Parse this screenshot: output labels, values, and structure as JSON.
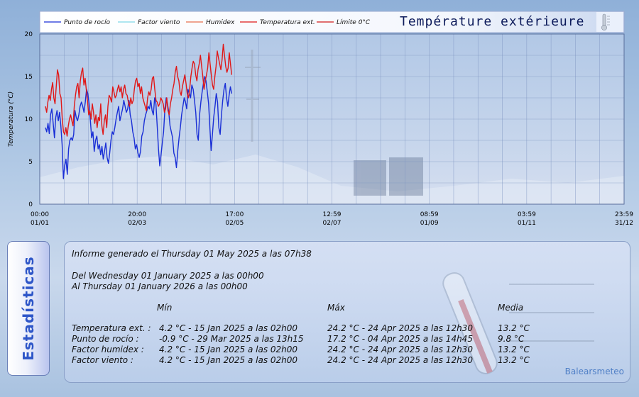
{
  "chart_data": {
    "type": "line",
    "title": "Température extérieure",
    "ylabel": "Temperatura (°C)",
    "xlabel": "",
    "ylim": [
      0,
      20
    ],
    "yticks": [
      "0",
      "5",
      "10",
      "15",
      "20"
    ],
    "xticks": [
      {
        "time": "00:00",
        "date": "01/01"
      },
      {
        "time": "20:00",
        "date": "02/03"
      },
      {
        "time": "17:00",
        "date": "02/05"
      },
      {
        "time": "12:59",
        "date": "02/07"
      },
      {
        "time": "08:59",
        "date": "01/09"
      },
      {
        "time": "03:59",
        "date": "01/11"
      },
      {
        "time": "23:59",
        "date": "31/12"
      }
    ],
    "grid": true,
    "legend_position": "top",
    "series": [
      {
        "name": "Punto de rocío",
        "color": "#1a2fd6",
        "values": [
          9.0,
          8.5,
          9.5,
          8.3,
          10.5,
          11.2,
          9.5,
          7.8,
          10.2,
          11.0,
          9.8,
          10.8,
          9.2,
          7.0,
          3.0,
          4.5,
          5.3,
          3.5,
          6.5,
          7.5,
          7.8,
          7.5,
          8.2,
          11.0,
          10.2,
          9.8,
          10.5,
          11.5,
          12.0,
          11.5,
          10.8,
          12.0,
          13.5,
          13.0,
          11.8,
          9.8,
          7.8,
          8.5,
          6.2,
          7.5,
          8.0,
          6.5,
          7.0,
          5.8,
          6.8,
          5.3,
          6.2,
          7.2,
          5.5,
          4.8,
          6.0,
          7.5,
          8.5,
          8.2,
          9.0,
          10.0,
          10.8,
          11.5,
          9.8,
          10.5,
          11.2,
          12.2,
          11.5,
          10.8,
          11.2,
          12.2,
          10.5,
          9.8,
          8.5,
          7.8,
          6.5,
          7.0,
          6.0,
          5.5,
          6.2,
          8.0,
          8.5,
          9.8,
          10.5,
          11.0,
          11.5,
          11.2,
          12.2,
          11.0,
          10.5,
          12.5,
          11.8,
          9.2,
          6.5,
          4.5,
          5.8,
          7.2,
          8.5,
          11.2,
          12.5,
          11.8,
          10.8,
          9.2,
          8.5,
          7.8,
          6.0,
          5.5,
          4.3,
          6.2,
          7.8,
          9.0,
          10.5,
          11.5,
          12.5,
          12.0,
          11.2,
          13.5,
          13.0,
          12.5,
          14.0,
          13.5,
          12.2,
          10.8,
          8.2,
          7.5,
          10.5,
          12.0,
          13.2,
          14.2,
          15.0,
          14.5,
          13.2,
          11.8,
          9.0,
          6.3,
          8.2,
          10.2,
          11.5,
          13.0,
          12.0,
          9.0,
          8.2,
          10.5,
          12.2,
          13.5,
          14.2,
          12.5,
          11.5,
          12.8,
          13.8,
          13.0
        ]
      },
      {
        "name": "Factor viento",
        "color": "#7fd8e8",
        "values": []
      },
      {
        "name": "Humidex",
        "color": "#e8704e",
        "values": []
      },
      {
        "name": "Temperatura ext.",
        "color": "#e01818",
        "values": [
          11.5,
          10.8,
          12.0,
          12.8,
          12.2,
          13.5,
          14.3,
          12.5,
          11.8,
          13.8,
          15.8,
          15.2,
          13.0,
          12.5,
          10.0,
          8.5,
          8.2,
          9.0,
          8.0,
          9.2,
          10.0,
          10.5,
          9.8,
          9.2,
          11.5,
          12.8,
          13.8,
          14.2,
          12.5,
          14.5,
          15.5,
          16.0,
          14.0,
          14.8,
          13.5,
          12.2,
          10.5,
          11.0,
          10.0,
          11.8,
          10.8,
          9.5,
          10.5,
          9.0,
          10.2,
          9.8,
          11.8,
          9.2,
          8.2,
          9.8,
          10.5,
          9.0,
          11.5,
          12.8,
          12.5,
          12.0,
          13.8,
          13.2,
          12.5,
          12.8,
          13.5,
          14.0,
          13.2,
          13.8,
          12.5,
          13.5,
          14.0,
          13.0,
          12.8,
          12.0,
          11.5,
          12.5,
          11.8,
          12.2,
          13.5,
          14.5,
          14.8,
          13.8,
          14.2,
          13.0,
          13.8,
          12.5,
          12.0,
          11.5,
          11.0,
          12.5,
          13.2,
          12.8,
          13.5,
          14.8,
          15.0,
          13.5,
          12.2,
          12.0,
          11.5,
          11.8,
          12.5,
          12.2,
          11.8,
          10.8,
          11.2,
          12.5,
          11.0,
          10.5,
          11.8,
          12.5,
          13.5,
          14.2,
          15.5,
          16.2,
          15.0,
          14.5,
          13.2,
          12.8,
          13.8,
          14.5,
          15.2,
          14.2,
          13.0,
          12.5,
          13.5,
          15.0,
          16.0,
          16.8,
          16.5,
          15.2,
          14.5,
          15.8,
          16.5,
          17.5,
          16.2,
          15.0,
          13.5,
          14.5,
          15.2,
          16.0,
          17.8,
          16.5,
          15.2,
          14.0,
          13.5,
          15.0,
          16.2,
          18.0,
          17.2,
          16.5,
          15.8,
          17.0,
          18.8,
          17.5,
          16.2,
          15.5,
          16.0,
          17.8,
          16.5,
          15.2
        ]
      },
      {
        "name": "Límite 0°C",
        "color": "#d21c1c",
        "values": []
      }
    ]
  },
  "stats": {
    "tab_label": "Estadísticas",
    "report_line": "Informe generado el Thursday 01 May 2025 a las 07h38",
    "from_line": "Del Wednesday 01 January 2025 a las 00h00",
    "to_line": "Al Thursday 01 January 2026 a las 00h00",
    "headers": {
      "min": "Mín",
      "max": "Máx",
      "avg": "Media"
    },
    "rows": [
      {
        "label": "Temperatura ext. :",
        "min": "4.2 °C - 15 Jan 2025 a las 02h00",
        "max": "24.2 °C - 24 Apr 2025 a las 12h30",
        "avg": "13.2 °C"
      },
      {
        "label": "Punto de rocío :",
        "min": "-0.9 °C - 29 Mar 2025 a las 13h15",
        "max": "17.2 °C - 04 Apr 2025 a las 14h45",
        "avg": "9.8 °C"
      },
      {
        "label": "Factor humidex :",
        "min": "4.2 °C - 15 Jan 2025 a las 02h00",
        "max": "24.2 °C - 24 Apr 2025 a las 12h30",
        "avg": "13.2 °C"
      },
      {
        "label": "Factor viento :",
        "min": "4.2 °C - 15 Jan 2025 a las 02h00",
        "max": "24.2 °C - 24 Apr 2025 a las 12h30",
        "avg": "13.2 °C"
      }
    ],
    "brand": "Balearsmeteo"
  },
  "colors": {
    "grid": "#7d93c0",
    "panel_border": "#8aa0c8",
    "tab_text": "#2e56c8"
  },
  "icons": {
    "title_icon": "thermometer-icon",
    "panel_deco": "thermometer-icon"
  }
}
